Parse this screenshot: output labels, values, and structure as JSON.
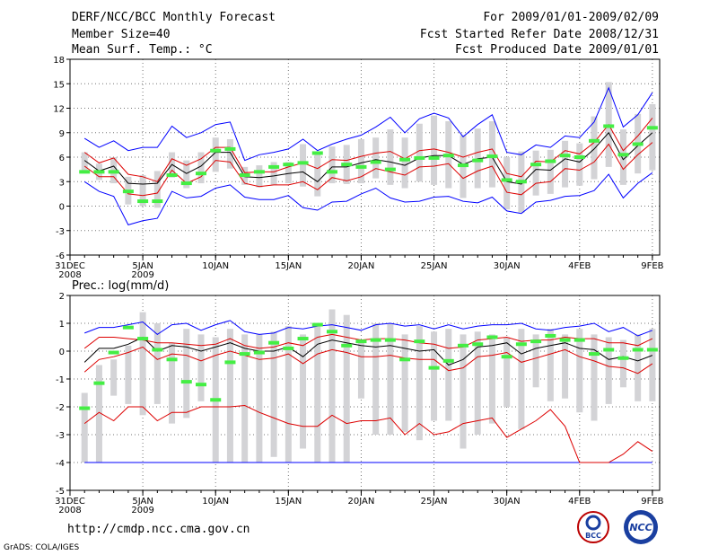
{
  "header": {
    "title": "DERF/NCC/BCC Monthly Forecast",
    "member": "Member Size=40",
    "variable": "Mean Surf. Temp.: °C",
    "period": "For 2009/01/01-2009/02/09",
    "started": "Fcst Started Refer Date 2008/12/31",
    "produced": "Fcst Produced Date 2009/01/01"
  },
  "footer": {
    "url": "http://cmdp.ncc.cma.gov.cn",
    "credit": "GrADS: COLA/IGES"
  },
  "logos": {
    "bcc": "BCC",
    "ncc": "NCC"
  },
  "x_ticks": [
    {
      "day": 0,
      "l1": "31DEC",
      "l2": "2008"
    },
    {
      "day": 5,
      "l1": "5JAN",
      "l2": "2009"
    },
    {
      "day": 10,
      "l1": "10JAN",
      "l2": ""
    },
    {
      "day": 15,
      "l1": "15JAN",
      "l2": ""
    },
    {
      "day": 20,
      "l1": "20JAN",
      "l2": ""
    },
    {
      "day": 25,
      "l1": "25JAN",
      "l2": ""
    },
    {
      "day": 30,
      "l1": "30JAN",
      "l2": ""
    },
    {
      "day": 35,
      "l1": "4FEB",
      "l2": ""
    },
    {
      "day": 40,
      "l1": "9FEB",
      "l2": ""
    }
  ],
  "chart_data": [
    {
      "type": "line",
      "title": "Mean Surf. Temp.: °C",
      "xlabel": "",
      "ylabel": "",
      "x": [
        1,
        2,
        3,
        4,
        5,
        6,
        7,
        8,
        9,
        10,
        11,
        12,
        13,
        14,
        15,
        16,
        17,
        18,
        19,
        20,
        21,
        22,
        23,
        24,
        25,
        26,
        27,
        28,
        29,
        30,
        31,
        32,
        33,
        34,
        35,
        36,
        37,
        38,
        39,
        40
      ],
      "xlim": [
        0,
        40.5
      ],
      "ylim": [
        -6,
        18
      ],
      "yticks": [
        -6,
        -3,
        0,
        3,
        6,
        9,
        12,
        15,
        18
      ],
      "series": [
        {
          "name": "max",
          "color": "#0000ff",
          "values": [
            8.3,
            7.2,
            8.0,
            6.8,
            7.2,
            7.2,
            9.8,
            8.4,
            9.0,
            10.0,
            10.3,
            5.6,
            6.3,
            6.6,
            7.0,
            8.2,
            6.8,
            7.6,
            8.2,
            8.7,
            9.7,
            10.9,
            9.0,
            10.7,
            11.4,
            10.8,
            8.5,
            10.0,
            11.2,
            6.6,
            6.3,
            7.5,
            7.2,
            8.6,
            8.4,
            10.3,
            14.5,
            9.7,
            11.2,
            13.9
          ]
        },
        {
          "name": "upper",
          "color": "#dd0000",
          "values": [
            6.6,
            5.3,
            5.9,
            3.9,
            3.6,
            3.0,
            5.8,
            5.0,
            5.8,
            7.2,
            7.2,
            4.1,
            4.2,
            4.2,
            4.8,
            5.3,
            4.6,
            5.7,
            5.6,
            6.1,
            6.5,
            6.7,
            5.8,
            6.8,
            7.0,
            6.6,
            6.0,
            6.6,
            7.0,
            4.0,
            3.6,
            5.5,
            5.4,
            6.8,
            6.4,
            7.8,
            10.0,
            6.8,
            8.6,
            10.8
          ]
        },
        {
          "name": "mean",
          "color": "#000000",
          "values": [
            5.6,
            4.3,
            4.9,
            2.8,
            2.7,
            2.8,
            5.1,
            4.0,
            4.9,
            6.6,
            6.6,
            3.6,
            3.5,
            3.7,
            4.0,
            4.2,
            3.0,
            4.8,
            4.8,
            5.3,
            5.7,
            5.4,
            5.0,
            5.9,
            6.2,
            6.2,
            5.1,
            5.8,
            6.0,
            3.0,
            2.7,
            4.5,
            4.4,
            5.8,
            5.4,
            7.0,
            9.0,
            5.7,
            7.4,
            9.0
          ]
        },
        {
          "name": "lower",
          "color": "#dd0000",
          "values": [
            4.9,
            3.6,
            3.6,
            1.5,
            1.3,
            1.6,
            4.4,
            2.8,
            3.6,
            5.6,
            5.4,
            2.8,
            2.4,
            2.6,
            2.6,
            3.0,
            2.0,
            3.5,
            3.1,
            3.6,
            4.6,
            4.2,
            3.8,
            4.8,
            4.9,
            5.2,
            3.4,
            4.3,
            4.9,
            1.7,
            1.4,
            2.8,
            3.0,
            4.6,
            4.4,
            5.4,
            7.6,
            4.5,
            6.3,
            7.8
          ]
        },
        {
          "name": "min",
          "color": "#0000ff",
          "values": [
            3.0,
            1.8,
            1.2,
            -2.3,
            -1.8,
            -1.5,
            1.8,
            1.0,
            1.2,
            2.2,
            2.6,
            1.1,
            0.8,
            0.8,
            1.3,
            -0.2,
            -0.5,
            0.5,
            0.6,
            1.5,
            2.2,
            1.0,
            0.5,
            0.6,
            1.1,
            1.2,
            0.6,
            0.4,
            1.1,
            -0.6,
            -0.9,
            0.5,
            0.7,
            1.2,
            1.3,
            1.9,
            3.9,
            1.0,
            2.8,
            4.1
          ]
        }
      ],
      "boxes": {
        "color": "#d3d3d6",
        "low": [
          4.0,
          3.2,
          2.8,
          0.2,
          0.0,
          -0.2,
          3.5,
          2.2,
          2.8,
          4.2,
          4.6,
          2.6,
          2.3,
          2.6,
          2.8,
          2.4,
          1.2,
          2.8,
          2.7,
          2.8,
          3.4,
          2.6,
          2.2,
          3.0,
          2.6,
          2.2,
          1.0,
          2.2,
          2.3,
          -0.4,
          -0.8,
          1.3,
          1.5,
          2.3,
          2.5,
          3.3,
          4.8,
          2.6,
          4.0,
          4.4
        ],
        "high": [
          6.6,
          5.2,
          6.0,
          3.6,
          3.8,
          4.3,
          6.6,
          5.6,
          6.6,
          8.4,
          8.2,
          4.8,
          5.0,
          5.4,
          5.4,
          7.6,
          6.4,
          7.3,
          7.5,
          8.2,
          8.4,
          9.4,
          8.4,
          10.1,
          11.1,
          10.4,
          8.7,
          9.5,
          10.4,
          6.0,
          6.7,
          6.8,
          6.9,
          8.0,
          7.7,
          11.0,
          15.2,
          9.4,
          11.3,
          12.5
        ]
      },
      "markers": {
        "color": "#44ee44",
        "values": [
          4.2,
          4.2,
          4.2,
          1.8,
          0.6,
          0.6,
          3.8,
          2.8,
          4.0,
          6.8,
          7.0,
          3.8,
          4.2,
          4.8,
          5.1,
          5.3,
          6.5,
          4.2,
          5.1,
          4.8,
          5.4,
          4.5,
          5.7,
          5.9,
          5.9,
          6.2,
          5.0,
          5.6,
          6.1,
          3.2,
          3.0,
          5.1,
          5.5,
          6.2,
          6.0,
          8.0,
          9.8,
          6.3,
          7.6,
          9.6
        ]
      }
    },
    {
      "type": "line",
      "title": "Prec.: log(mm/d)",
      "xlabel": "",
      "ylabel": "",
      "x": [
        1,
        2,
        3,
        4,
        5,
        6,
        7,
        8,
        9,
        10,
        11,
        12,
        13,
        14,
        15,
        16,
        17,
        18,
        19,
        20,
        21,
        22,
        23,
        24,
        25,
        26,
        27,
        28,
        29,
        30,
        31,
        32,
        33,
        34,
        35,
        36,
        37,
        38,
        39,
        40
      ],
      "xlim": [
        0,
        40.5
      ],
      "ylim": [
        -5,
        2
      ],
      "yticks": [
        -5,
        -4,
        -3,
        -2,
        -1,
        0,
        1,
        2
      ],
      "series": [
        {
          "name": "max",
          "color": "#0000ff",
          "values": [
            0.65,
            0.85,
            0.85,
            0.95,
            1.05,
            0.6,
            0.95,
            1.0,
            0.75,
            0.95,
            1.1,
            0.7,
            0.6,
            0.65,
            0.85,
            0.8,
            0.9,
            0.95,
            0.85,
            0.75,
            0.95,
            1.0,
            0.9,
            0.95,
            0.8,
            0.95,
            0.8,
            0.9,
            0.95,
            0.95,
            1.0,
            0.8,
            0.75,
            0.85,
            0.9,
            1.0,
            0.7,
            0.85,
            0.55,
            0.75
          ]
        },
        {
          "name": "upper",
          "color": "#dd0000",
          "values": [
            0.1,
            0.5,
            0.5,
            0.45,
            0.4,
            0.3,
            0.3,
            0.25,
            0.2,
            0.25,
            0.45,
            0.2,
            0.1,
            0.15,
            0.3,
            0.2,
            0.5,
            0.6,
            0.5,
            0.4,
            0.45,
            0.45,
            0.4,
            0.3,
            0.25,
            0.1,
            0.15,
            0.4,
            0.45,
            0.5,
            0.35,
            0.4,
            0.4,
            0.5,
            0.45,
            0.45,
            0.3,
            0.3,
            0.2,
            0.45
          ]
        },
        {
          "name": "mean",
          "color": "#000000",
          "values": [
            -0.4,
            0.1,
            0.1,
            0.25,
            0.5,
            0.0,
            0.2,
            0.15,
            0.0,
            0.15,
            0.3,
            0.1,
            0.0,
            0.0,
            0.15,
            -0.2,
            0.25,
            0.4,
            0.3,
            0.2,
            0.15,
            0.2,
            0.1,
            0.0,
            0.05,
            -0.5,
            -0.3,
            0.15,
            0.2,
            0.3,
            -0.1,
            0.1,
            0.2,
            0.3,
            0.1,
            0.05,
            -0.3,
            -0.2,
            -0.35,
            -0.15
          ]
        },
        {
          "name": "lower",
          "color": "#dd0000",
          "values": [
            -0.75,
            -0.3,
            -0.2,
            -0.05,
            0.15,
            -0.3,
            -0.1,
            -0.15,
            -0.35,
            -0.15,
            0.0,
            -0.15,
            -0.3,
            -0.25,
            -0.1,
            -0.45,
            -0.1,
            0.05,
            -0.05,
            -0.2,
            -0.2,
            -0.15,
            -0.25,
            -0.3,
            -0.3,
            -0.7,
            -0.6,
            -0.2,
            -0.15,
            -0.05,
            -0.4,
            -0.25,
            -0.1,
            0.05,
            -0.2,
            -0.35,
            -0.55,
            -0.6,
            -0.8,
            -0.45
          ]
        },
        {
          "name": "min",
          "color": "#dd0000",
          "values": [
            -2.6,
            -2.2,
            -2.5,
            -2.0,
            -2.0,
            -2.5,
            -2.2,
            -2.2,
            -2.0,
            -2.0,
            -2.0,
            -1.95,
            -2.2,
            -2.4,
            -2.6,
            -2.7,
            -2.7,
            -2.3,
            -2.6,
            -2.5,
            -2.5,
            -2.4,
            -3.0,
            -2.6,
            -3.0,
            -2.9,
            -2.6,
            -2.5,
            -2.4,
            -3.1,
            -2.8,
            -2.5,
            -2.1,
            -2.7,
            -4.0,
            -4.0,
            -4.0,
            -3.7,
            -3.25,
            -3.6
          ]
        }
      ],
      "baseline": {
        "color": "#0000ff",
        "value": -4
      },
      "boxes": {
        "color": "#d3d3d6",
        "low": [
          -4.0,
          -4.0,
          -1.6,
          -1.9,
          -2.3,
          -1.9,
          -2.6,
          -2.4,
          -1.8,
          -4.0,
          -4.0,
          -4.0,
          -4.0,
          -3.8,
          -4.0,
          -3.5,
          -4.0,
          -4.0,
          -4.0,
          -1.7,
          -3.0,
          -3.0,
          -2.9,
          -3.2,
          -2.5,
          -2.5,
          -3.5,
          -3.0,
          -2.6,
          -2.0,
          -2.8,
          -1.3,
          -1.8,
          -1.7,
          -2.2,
          -2.5,
          -1.9,
          -1.3,
          -1.8,
          -1.8
        ],
        "high": [
          -1.5,
          -0.5,
          -0.3,
          0.2,
          1.4,
          1.0,
          0.3,
          0.8,
          0.6,
          0.5,
          0.8,
          0.6,
          0.6,
          0.7,
          0.9,
          0.6,
          0.9,
          1.5,
          1.3,
          0.4,
          1.0,
          1.0,
          0.6,
          0.9,
          0.7,
          0.8,
          0.6,
          0.7,
          0.6,
          0.5,
          0.8,
          0.6,
          0.8,
          0.6,
          0.8,
          0.6,
          0.5,
          0.4,
          0.6,
          0.8
        ]
      },
      "markers": {
        "color": "#44ee44",
        "values": [
          -2.05,
          -1.15,
          -0.05,
          0.85,
          0.45,
          0.05,
          -0.3,
          -1.1,
          -1.2,
          -1.75,
          -0.4,
          -0.1,
          -0.05,
          0.3,
          0.1,
          0.45,
          0.95,
          0.7,
          0.2,
          0.35,
          0.4,
          0.4,
          -0.3,
          0.35,
          -0.6,
          -0.35,
          0.2,
          0.25,
          0.5,
          -0.2,
          0.25,
          0.35,
          0.55,
          0.4,
          0.4,
          -0.1,
          0.05,
          -0.25,
          0.05,
          0.05
        ]
      }
    }
  ]
}
